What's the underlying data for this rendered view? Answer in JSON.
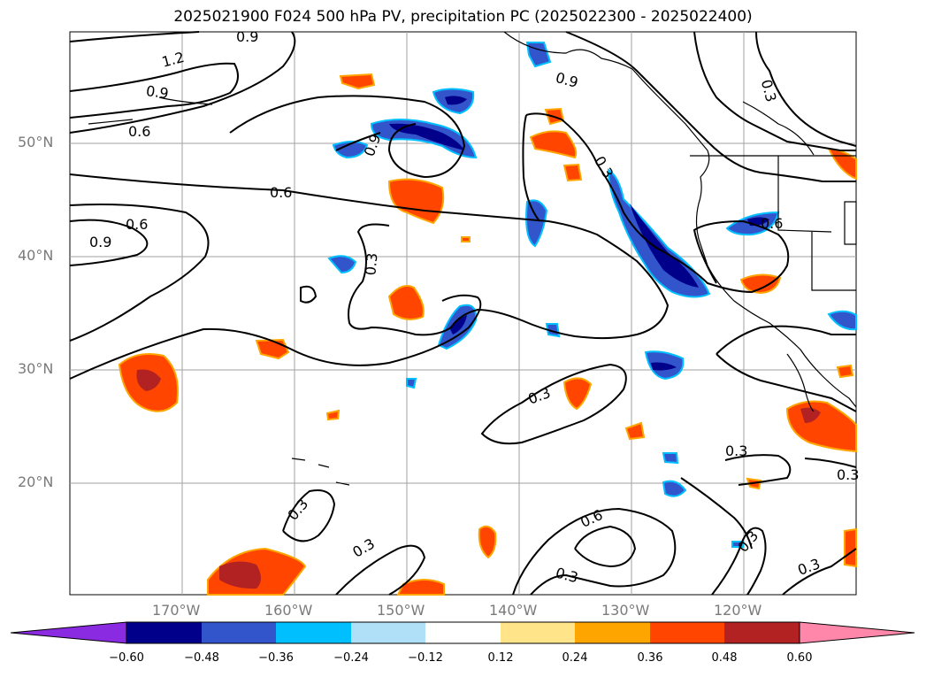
{
  "title": "2025021900 F024 500 hPa PV, precipitation PC (2025022300 - 2025022400)",
  "lat_labels": [
    "50°N",
    "40°N",
    "30°N",
    "20°N"
  ],
  "lon_labels": [
    "170°W",
    "160°W",
    "150°W",
    "140°W",
    "130°W",
    "120°W"
  ],
  "contour_labels": [
    "1.2",
    "0.9",
    "0.9",
    "0.6",
    "0.6",
    "0.6",
    "0.9",
    "0.9",
    "0.9",
    "0.3",
    "0.3",
    "0.3",
    "0.6",
    "0.3",
    "0.3",
    "0.3",
    "0.3",
    "0.6",
    "0.3",
    "0.3",
    "0.3",
    "0.3",
    "0.3"
  ],
  "colorbar": {
    "ticks": [
      "−0.60",
      "−0.48",
      "−0.36",
      "−0.24",
      "−0.12",
      "0.12",
      "0.24",
      "0.36",
      "0.48",
      "0.60"
    ],
    "colors": [
      "#8a2be2",
      "#00008b",
      "#3355cc",
      "#00bfff",
      "#b0e0f8",
      "#ffffff",
      "#ffe48a",
      "#ffa500",
      "#ff4500",
      "#b22222",
      "#ff88aa"
    ]
  }
}
